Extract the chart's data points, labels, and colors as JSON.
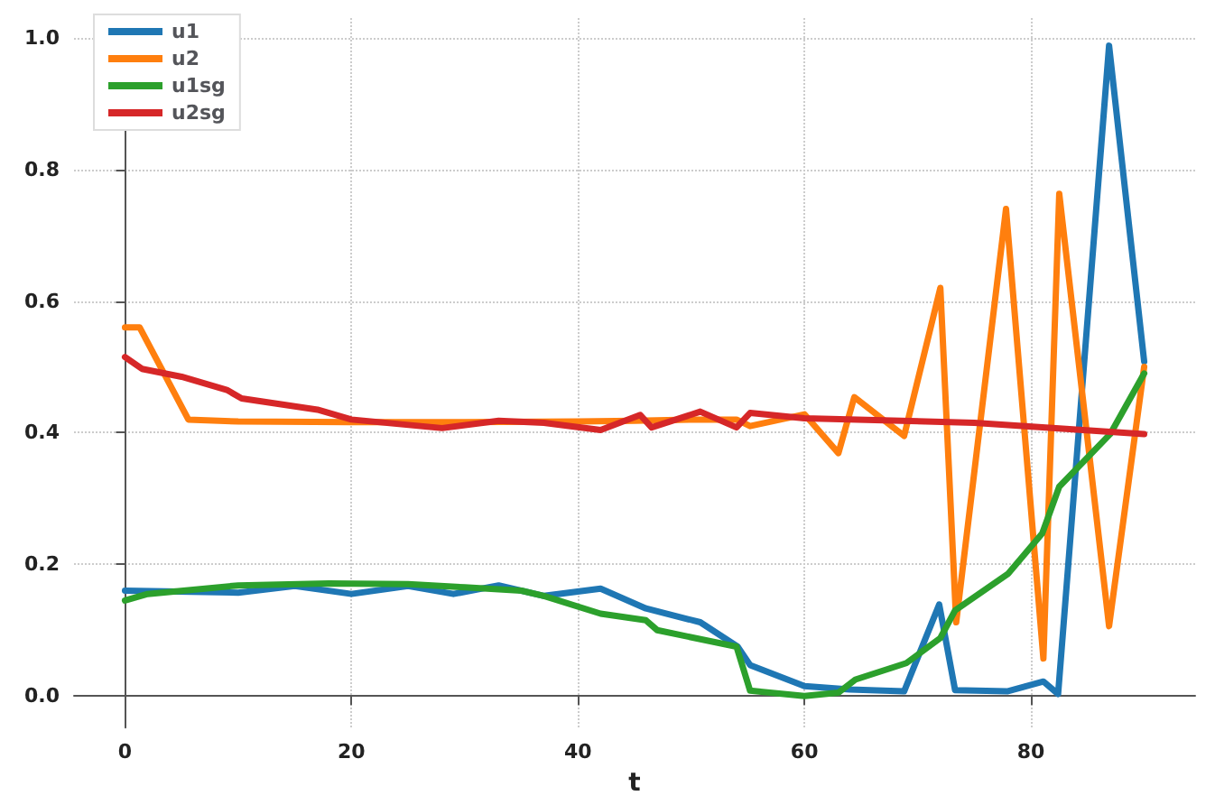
{
  "chart_data": {
    "type": "line",
    "xlabel": "t",
    "xlim": [
      -4.5,
      94.5
    ],
    "xticks": [
      0,
      20,
      40,
      60,
      80
    ],
    "ylim": [
      -0.048,
      1.03
    ],
    "yticks": [
      {
        "value": 0,
        "label": "0.0"
      },
      {
        "value": 0.2,
        "label": "0.2"
      },
      {
        "value": 0.4,
        "label": "0.4"
      },
      {
        "value": 0.6,
        "label": "0.6"
      },
      {
        "value": 0.8,
        "label": "0.8"
      },
      {
        "value": 1,
        "label": "1.0"
      }
    ],
    "grid": true,
    "legend": "top left",
    "line_style": "solid",
    "marker": "none",
    "series": [
      {
        "name": "u1",
        "color": "#1f77b4",
        "x": [
          0,
          10,
          15,
          20,
          25,
          29,
          33,
          37,
          42,
          46,
          50.8,
          54.1,
          55.2,
          60,
          64,
          68.8,
          71.9,
          73.3,
          77.9,
          81.1,
          82.4,
          86.9,
          90
        ],
        "values": [
          0.16,
          0.157,
          0.167,
          0.155,
          0.167,
          0.155,
          0.168,
          0.152,
          0.163,
          0.133,
          0.112,
          0.075,
          0.047,
          0.015,
          0.01,
          0.007,
          0.139,
          0.009,
          0.007,
          0.022,
          0.003,
          0.988,
          0.508
        ]
      },
      {
        "name": "u2",
        "color": "#ff7f0e",
        "x": [
          0,
          1.3,
          5.6,
          10,
          20,
          30,
          40,
          45,
          50,
          54,
          55.2,
          60,
          63,
          64.4,
          68.8,
          72,
          73.4,
          77.8,
          81.1,
          82.5,
          86.9,
          90
        ],
        "values": [
          0.56,
          0.56,
          0.42,
          0.417,
          0.416,
          0.416,
          0.417,
          0.418,
          0.42,
          0.42,
          0.41,
          0.428,
          0.369,
          0.454,
          0.395,
          0.62,
          0.112,
          0.74,
          0.057,
          0.763,
          0.106,
          0.5
        ]
      },
      {
        "name": "u1sg",
        "color": "#2ca02c",
        "x": [
          0,
          2,
          10,
          18,
          25,
          30,
          35,
          37,
          42,
          46,
          47,
          54,
          55.2,
          60,
          63,
          64.5,
          69,
          72,
          73.3,
          78,
          81,
          82.5,
          87,
          90
        ],
        "values": [
          0.145,
          0.155,
          0.168,
          0.171,
          0.17,
          0.165,
          0.16,
          0.152,
          0.125,
          0.115,
          0.1,
          0.075,
          0.008,
          0,
          0.005,
          0.025,
          0.05,
          0.088,
          0.13,
          0.186,
          0.247,
          0.318,
          0.398,
          0.49
        ]
      },
      {
        "name": "u2sg",
        "color": "#d62728",
        "x": [
          0,
          1.5,
          5,
          9,
          10.3,
          17,
          20,
          28,
          33,
          37,
          42,
          45.5,
          46.5,
          50.8,
          54,
          55.2,
          60,
          75,
          90
        ],
        "values": [
          0.515,
          0.497,
          0.485,
          0.465,
          0.452,
          0.435,
          0.42,
          0.407,
          0.418,
          0.415,
          0.404,
          0.427,
          0.408,
          0.432,
          0.408,
          0.43,
          0.422,
          0.415,
          0.398
        ]
      }
    ]
  }
}
